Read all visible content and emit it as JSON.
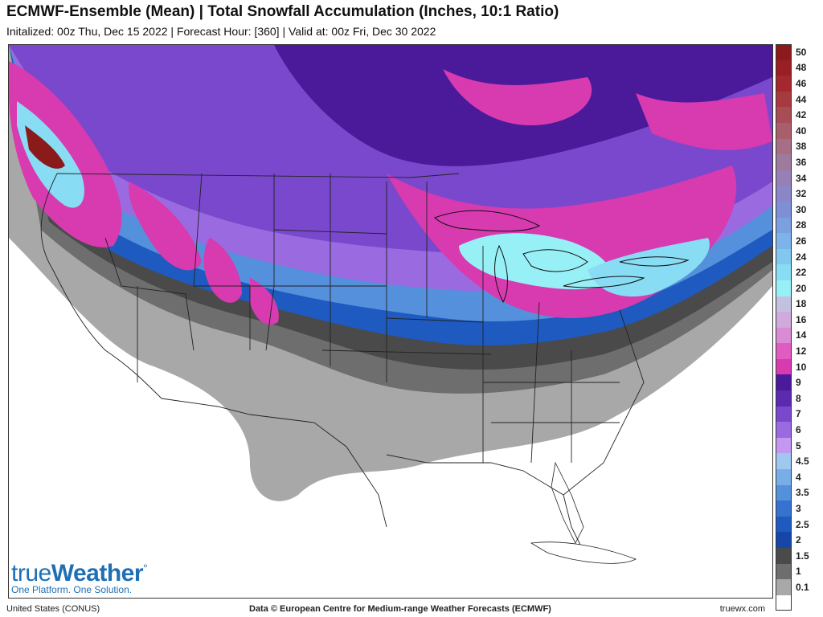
{
  "header": {
    "title": "ECMWF-Ensemble (Mean) | Total Snowfall Accumulation (Inches, 10:1 Ratio)",
    "subtitle": "Initalized: 00z Thu, Dec 15 2022  |  Forecast Hour: [360]  |  Valid at: 00z Fri, Dec 30 2022"
  },
  "legend": {
    "items": [
      {
        "label": "50",
        "color": "#8b1a1a"
      },
      {
        "label": "48",
        "color": "#981f24"
      },
      {
        "label": "46",
        "color": "#a5282e"
      },
      {
        "label": "44",
        "color": "#a63a40"
      },
      {
        "label": "42",
        "color": "#a84c55"
      },
      {
        "label": "40",
        "color": "#a95e6c"
      },
      {
        "label": "38",
        "color": "#a66f86"
      },
      {
        "label": "36",
        "color": "#9f7a9f"
      },
      {
        "label": "34",
        "color": "#9680b5"
      },
      {
        "label": "32",
        "color": "#8a86c8"
      },
      {
        "label": "30",
        "color": "#7f8fd6"
      },
      {
        "label": "28",
        "color": "#7aa0e0"
      },
      {
        "label": "26",
        "color": "#7cb3e8"
      },
      {
        "label": "24",
        "color": "#80c8ef"
      },
      {
        "label": "22",
        "color": "#88dcf4"
      },
      {
        "label": "20",
        "color": "#98f0f7"
      },
      {
        "label": "18",
        "color": "#c2c2e0"
      },
      {
        "label": "16",
        "color": "#cfaadc"
      },
      {
        "label": "14",
        "color": "#d98bd3"
      },
      {
        "label": "12",
        "color": "#e05bc2"
      },
      {
        "label": "10",
        "color": "#d83ab0"
      },
      {
        "label": "9",
        "color": "#4a1a9a"
      },
      {
        "label": "8",
        "color": "#5b2ab0"
      },
      {
        "label": "7",
        "color": "#7a48cc"
      },
      {
        "label": "6",
        "color": "#9a6ae0"
      },
      {
        "label": "5",
        "color": "#c498f0"
      },
      {
        "label": "4.5",
        "color": "#9fc8f0"
      },
      {
        "label": "4",
        "color": "#78aee8"
      },
      {
        "label": "3.5",
        "color": "#5590dc"
      },
      {
        "label": "3",
        "color": "#3672d0"
      },
      {
        "label": "2.5",
        "color": "#1e5ac0"
      },
      {
        "label": "2",
        "color": "#1646a8"
      },
      {
        "label": "1.5",
        "color": "#4a4a4a"
      },
      {
        "label": "1",
        "color": "#6e6e6e"
      },
      {
        "label": "0.1",
        "color": "#a8a8a8"
      }
    ],
    "base_color": "#ffffff"
  },
  "footer": {
    "left": "United States (CONUS)",
    "center": "Data © European Centre for Medium-range Weather Forecasts (ECMWF)",
    "right": "truewx.com"
  },
  "logo": {
    "word_light": "true",
    "word_bold": "Weather",
    "tagline": "One Platform. One Solution."
  }
}
